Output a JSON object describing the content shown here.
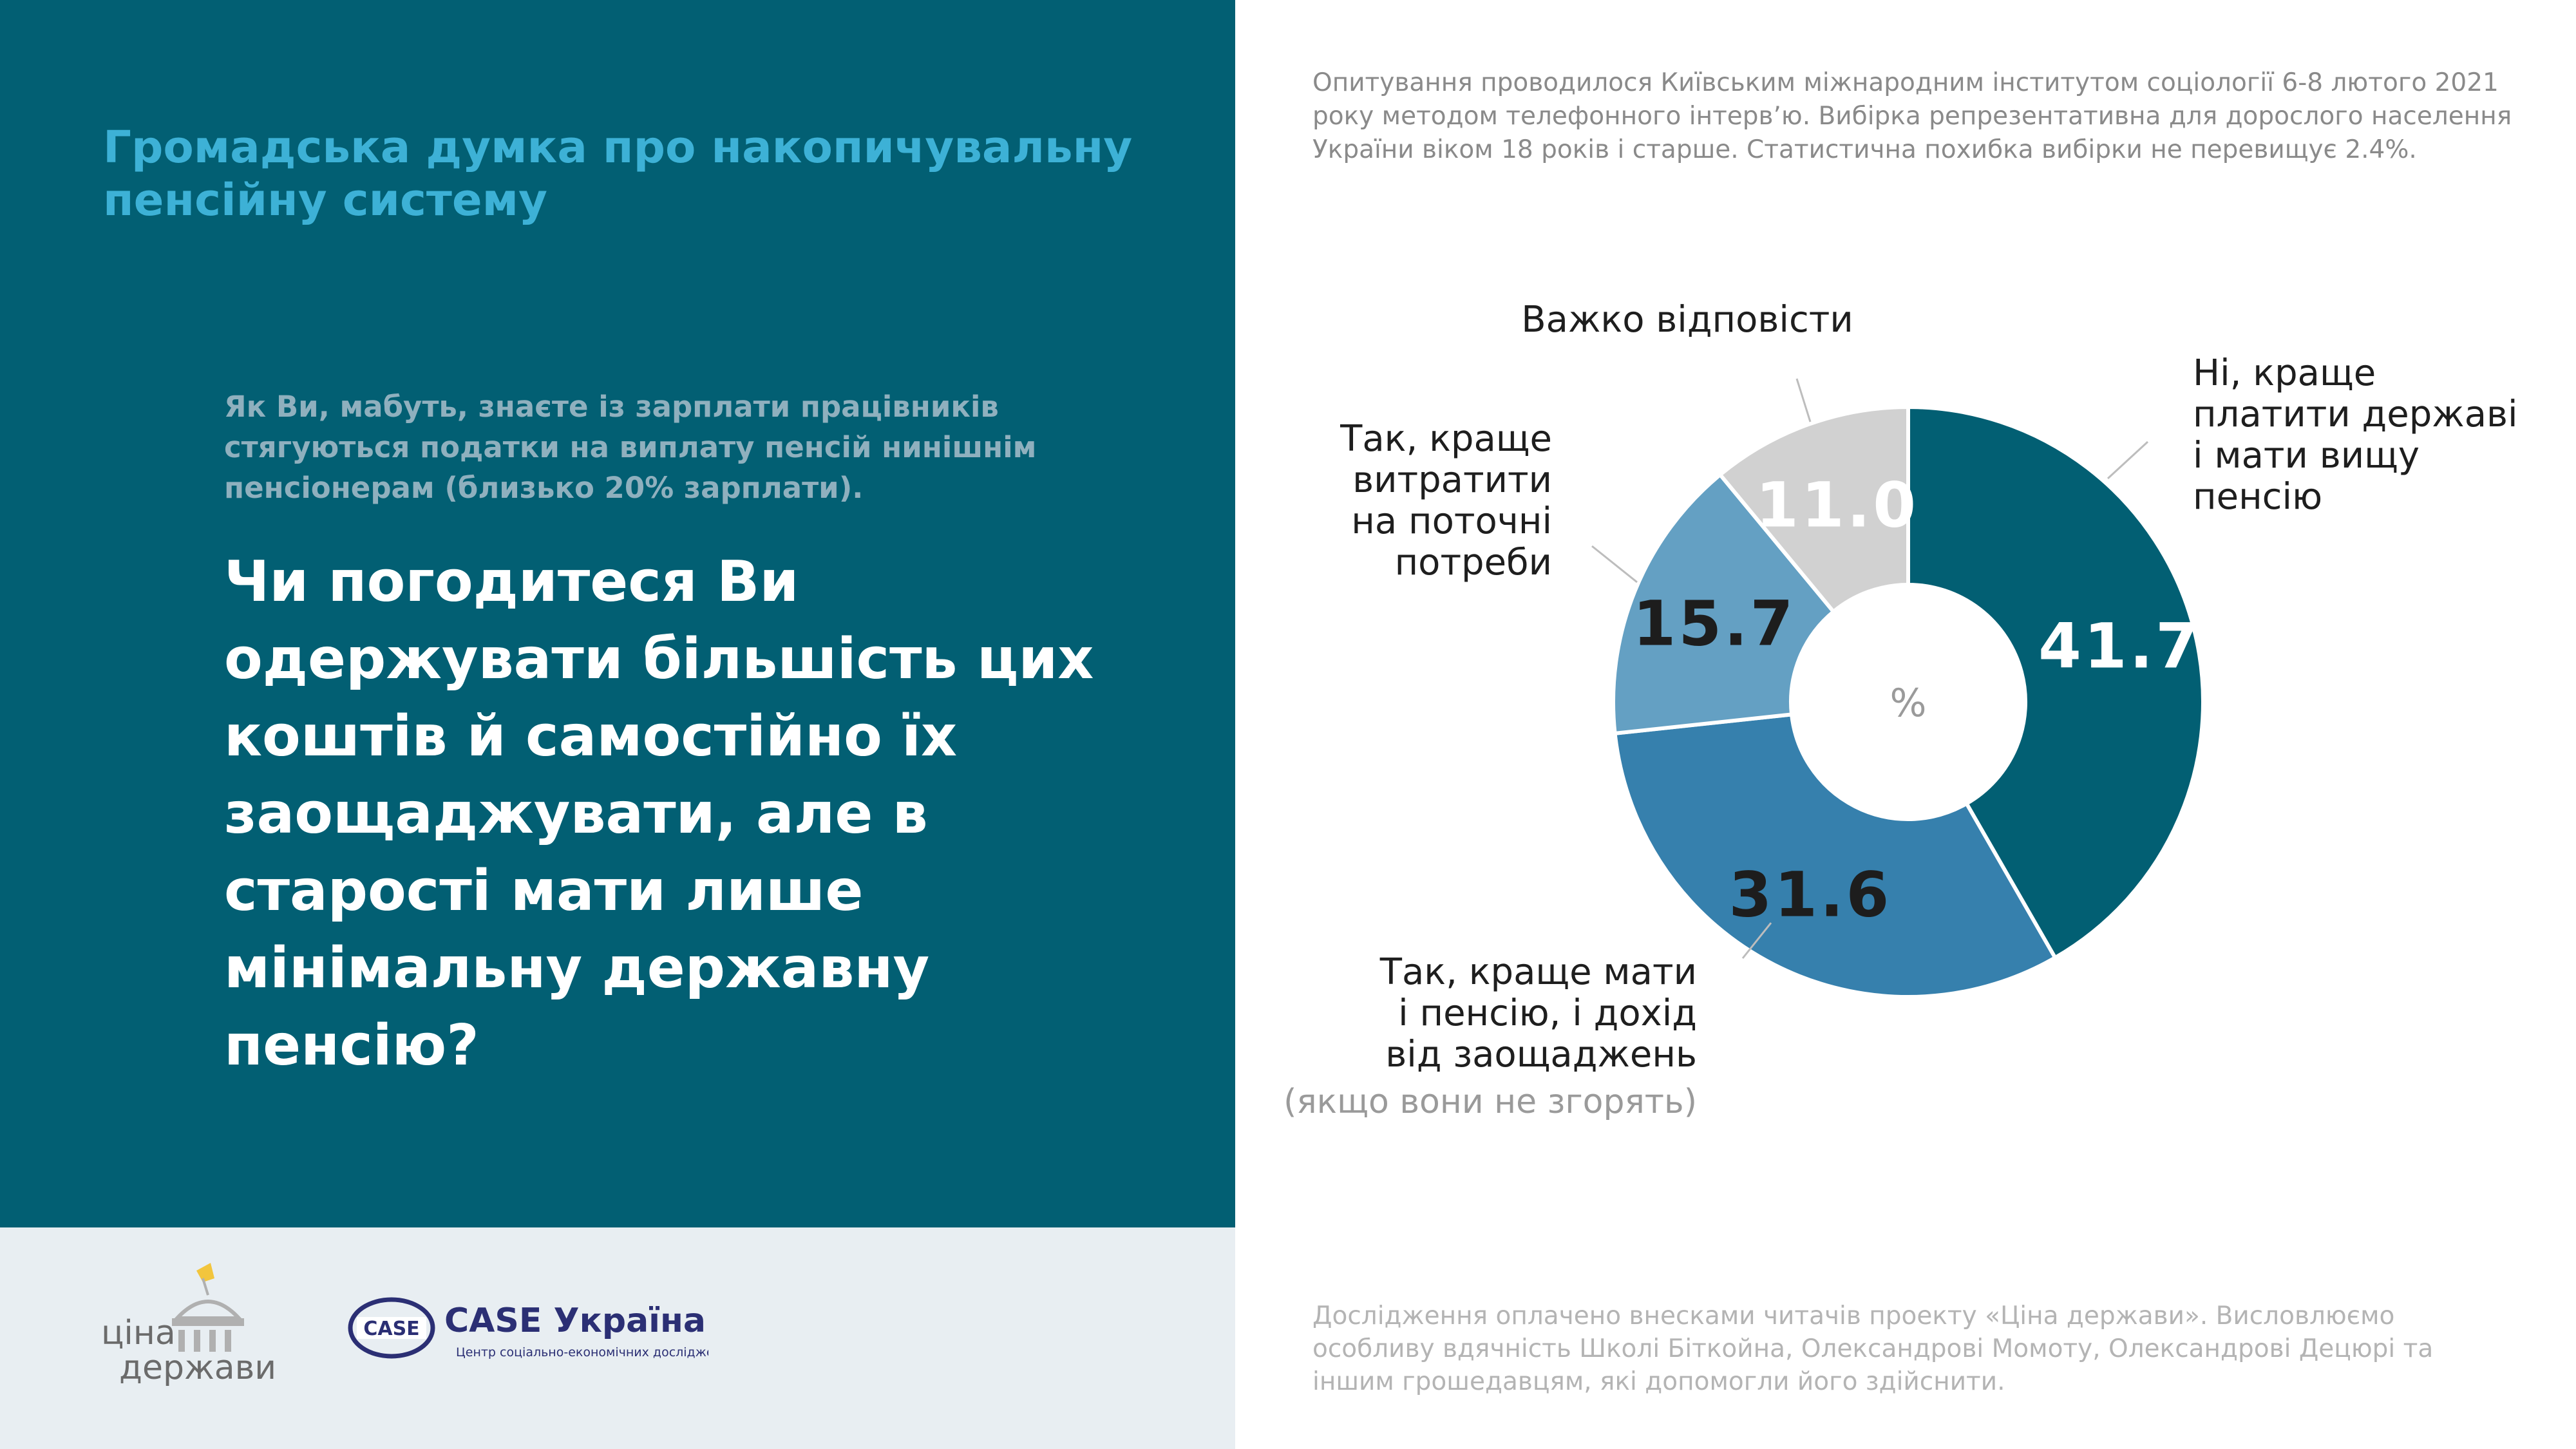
{
  "header": {
    "title": "Громадська думка про накопичувальну пенсійну систему"
  },
  "survey_note": "Опитування проводилося Київським міжнародним інститутом соціології 6-8 лютого 2021 року методом телефонного інтерв’ю. Вибірка репрезентативна для дорослого населення України віком 18 років і старше. Статистична похибка вибірки не перевищує 2.4%.",
  "question": {
    "intro": "Як Ви, мабуть, знаєте із зарплати працівників стягуються податки на виплату пенсій нинішнім пенсіонерам (близько 20% зарплати).",
    "text": "Чи погодитеся Ви одержувати більшість цих коштів й самостійно їх заощаджувати, але в старості мати лише мінімальну державну пенсію?"
  },
  "footer_note": "Дослідження оплачено внесками читачів проекту «Ціна держави». Висловлюємо особливу вдячність Школі Біткойна, Олександрові Момоту, Олександрові Децюрі та іншим грошедавцям, які допомогли його здійснити.",
  "logos": {
    "cina_line1": "ціна",
    "cina_line2": "держави",
    "case_badge": "CASE",
    "case_name": "CASE Україна",
    "case_subtitle": "Центр соціально-економічних досліджень"
  },
  "colors": {
    "panel": "#025f73",
    "title": "#3db1d6",
    "footer_bg": "#e8eef2"
  },
  "chart_data": {
    "type": "pie",
    "variant": "donut",
    "center_label": "%",
    "unit": "%",
    "slices": [
      {
        "value": 41.7,
        "label_lines": [
          "Ні, краще",
          "платити державі",
          "і мати вищу",
          "пенсію"
        ],
        "note": "",
        "color": "#025f73",
        "value_color": "#ffffff"
      },
      {
        "value": 31.6,
        "label_lines": [
          "Так, краще мати",
          "і пенсію, і дохід",
          "від заощаджень"
        ],
        "note": "(якщо вони не згорять)",
        "color": "#3680ad",
        "value_color": "#1d1d1d"
      },
      {
        "value": 15.7,
        "label_lines": [
          "Так, краще",
          "витратити",
          "на поточні",
          "потреби"
        ],
        "note": "",
        "color": "#64a0c3",
        "value_color": "#1d1d1d"
      },
      {
        "value": 11.0,
        "label_lines": [
          "Важко відповісти"
        ],
        "note": "",
        "color": "#d1d1d1",
        "value_color": "#ffffff"
      }
    ]
  }
}
